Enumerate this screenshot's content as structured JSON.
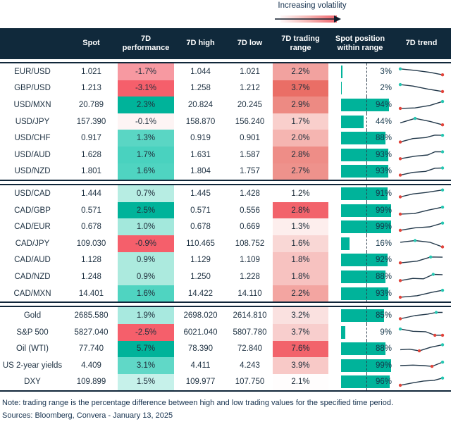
{
  "legend": {
    "label": "Increasing volatility"
  },
  "chart_data": {
    "type": "table",
    "columns": [
      "",
      "Spot",
      "7D performance",
      "7D high",
      "7D low",
      "7D trading range",
      "Spot position within range",
      "7D trend"
    ],
    "blocks": [
      {
        "rows": [
          {
            "label": "EUR/USD",
            "spot": "1.021",
            "perf": "-1.7%",
            "perf_bg": "#f799a1",
            "high": "1.044",
            "low": "1.021",
            "range": "2.2%",
            "range_bg": "#f2a29f",
            "pos": 3,
            "pos_label": "3%",
            "spark": {
              "pts": [
                [
                  0,
                  0.2
                ],
                [
                  0.35,
                  0.35
                ],
                [
                  0.7,
                  0.55
                ],
                [
                  1,
                  0.8
                ]
              ],
              "dots": [
                {
                  "i": 0,
                  "c": "teal"
                },
                {
                  "i": 3,
                  "c": "red"
                }
              ]
            }
          },
          {
            "label": "GBP/USD",
            "spot": "1.213",
            "perf": "-3.1%",
            "perf_bg": "#f55f6b",
            "high": "1.258",
            "low": "1.212",
            "range": "3.7%",
            "range_bg": "#ea6e66",
            "pos": 2,
            "pos_label": "2%",
            "spark": {
              "pts": [
                [
                  0,
                  0.15
                ],
                [
                  0.3,
                  0.3
                ],
                [
                  0.65,
                  0.6
                ],
                [
                  1,
                  0.85
                ]
              ],
              "dots": [
                {
                  "i": 0,
                  "c": "teal"
                },
                {
                  "i": 3,
                  "c": "red"
                }
              ]
            }
          },
          {
            "label": "USD/MXN",
            "spot": "20.789",
            "perf": "2.3%",
            "perf_bg": "#00b39a",
            "high": "20.824",
            "low": "20.245",
            "range": "2.9%",
            "range_bg": "#ed8a83",
            "pos": 94,
            "pos_label": "94%",
            "spark": {
              "pts": [
                [
                  0,
                  0.85
                ],
                [
                  0.35,
                  0.8
                ],
                [
                  0.7,
                  0.55
                ],
                [
                  1,
                  0.15
                ]
              ],
              "dots": [
                {
                  "i": 0,
                  "c": "red"
                },
                {
                  "i": 3,
                  "c": "teal"
                }
              ]
            }
          },
          {
            "label": "USD/JPY",
            "spot": "157.390",
            "perf": "-0.1%",
            "perf_bg": "#fdf4f4",
            "high": "158.870",
            "low": "156.240",
            "range": "1.7%",
            "range_bg": "#f9cfcc",
            "pos": 44,
            "pos_label": "44%",
            "spark": {
              "pts": [
                [
                  0,
                  0.6
                ],
                [
                  0.35,
                  0.15
                ],
                [
                  0.7,
                  0.45
                ],
                [
                  1,
                  0.8
                ]
              ],
              "dots": [
                {
                  "i": 1,
                  "c": "teal"
                },
                {
                  "i": 3,
                  "c": "red"
                }
              ]
            }
          },
          {
            "label": "USD/CHF",
            "spot": "0.917",
            "perf": "1.3%",
            "perf_bg": "#5ad6c4",
            "high": "0.919",
            "low": "0.901",
            "range": "2.0%",
            "range_bg": "#f5b5b1",
            "pos": 88,
            "pos_label": "88%",
            "spark": {
              "pts": [
                [
                  0,
                  0.9
                ],
                [
                  0.3,
                  0.55
                ],
                [
                  0.6,
                  0.45
                ],
                [
                  0.82,
                  0.2
                ],
                [
                  1,
                  0.22
                ]
              ],
              "dots": [
                {
                  "i": 0,
                  "c": "red"
                },
                {
                  "i": 4,
                  "c": "teal"
                }
              ]
            }
          },
          {
            "label": "USD/AUD",
            "spot": "1.628",
            "perf": "1.7%",
            "perf_bg": "#49d2bf",
            "high": "1.631",
            "low": "1.587",
            "range": "2.8%",
            "range_bg": "#ee8d87",
            "pos": 93,
            "pos_label": "93%",
            "spark": {
              "pts": [
                [
                  0,
                  0.88
                ],
                [
                  0.35,
                  0.62
                ],
                [
                  0.65,
                  0.5
                ],
                [
                  0.82,
                  0.18
                ],
                [
                  1,
                  0.18
                ]
              ],
              "dots": [
                {
                  "i": 0,
                  "c": "red"
                },
                {
                  "i": 4,
                  "c": "teal"
                }
              ]
            }
          },
          {
            "label": "USD/NZD",
            "spot": "1.801",
            "perf": "1.6%",
            "perf_bg": "#4fd4c1",
            "high": "1.804",
            "low": "1.757",
            "range": "2.7%",
            "range_bg": "#ee928c",
            "pos": 93,
            "pos_label": "93%",
            "spark": {
              "pts": [
                [
                  0,
                  0.9
                ],
                [
                  0.3,
                  0.62
                ],
                [
                  0.6,
                  0.52
                ],
                [
                  0.82,
                  0.2
                ],
                [
                  1,
                  0.18
                ]
              ],
              "dots": [
                {
                  "i": 0,
                  "c": "red"
                },
                {
                  "i": 4,
                  "c": "teal"
                }
              ]
            }
          }
        ]
      },
      {
        "rows": [
          {
            "label": "USD/CAD",
            "spot": "1.444",
            "perf": "0.7%",
            "perf_bg": "#b7ede3",
            "high": "1.445",
            "low": "1.428",
            "range": "1.2%",
            "range_bg": "#ffffff",
            "pos": 91,
            "pos_label": "91%",
            "spark": {
              "pts": [
                [
                  0,
                  0.82
                ],
                [
                  0.3,
                  0.52
                ],
                [
                  0.6,
                  0.38
                ],
                [
                  1,
                  0.12
                ]
              ],
              "dots": [
                {
                  "i": 0,
                  "c": "red"
                },
                {
                  "i": 3,
                  "c": "teal"
                }
              ]
            }
          },
          {
            "label": "CAD/GBP",
            "spot": "0.571",
            "perf": "2.5%",
            "perf_bg": "#00b39a",
            "high": "0.571",
            "low": "0.556",
            "range": "2.8%",
            "range_bg": "#f2636b",
            "pos": 99,
            "pos_label": "99%",
            "spark": {
              "pts": [
                [
                  0,
                  0.85
                ],
                [
                  0.33,
                  0.8
                ],
                [
                  0.66,
                  0.45
                ],
                [
                  1,
                  0.15
                ]
              ],
              "dots": [
                {
                  "i": 0,
                  "c": "red"
                },
                {
                  "i": 3,
                  "c": "teal"
                }
              ]
            }
          },
          {
            "label": "CAD/EUR",
            "spot": "0.678",
            "perf": "1.0%",
            "perf_bg": "#a3e8dc",
            "high": "0.678",
            "low": "0.669",
            "range": "1.3%",
            "range_bg": "#fdeeed",
            "pos": 99,
            "pos_label": "99%",
            "spark": {
              "pts": [
                [
                  0,
                  0.85
                ],
                [
                  0.35,
                  0.6
                ],
                [
                  0.7,
                  0.5
                ],
                [
                  1,
                  0.12
                ]
              ],
              "dots": [
                {
                  "i": 0,
                  "c": "red"
                },
                {
                  "i": 3,
                  "c": "teal"
                }
              ]
            }
          },
          {
            "label": "CAD/JPY",
            "spot": "109.030",
            "perf": "-0.9%",
            "perf_bg": "#f55f6b",
            "high": "110.465",
            "low": "108.752",
            "range": "1.6%",
            "range_bg": "#f9d7d5",
            "pos": 16,
            "pos_label": "16%",
            "spark": {
              "pts": [
                [
                  0,
                  0.35
                ],
                [
                  0.35,
                  0.18
                ],
                [
                  0.7,
                  0.35
                ],
                [
                  1,
                  0.82
                ]
              ],
              "dots": [
                {
                  "i": 1,
                  "c": "teal"
                },
                {
                  "i": 3,
                  "c": "red"
                }
              ]
            }
          },
          {
            "label": "CAD/AUD",
            "spot": "1.128",
            "perf": "0.9%",
            "perf_bg": "#aceade",
            "high": "1.129",
            "low": "1.109",
            "range": "1.8%",
            "range_bg": "#f7c2c0",
            "pos": 92,
            "pos_label": "92%",
            "spark": {
              "pts": [
                [
                  0,
                  0.8
                ],
                [
                  0.4,
                  0.62
                ],
                [
                  0.72,
                  0.2
                ],
                [
                  1,
                  0.22
                ]
              ],
              "dots": [
                {
                  "i": 0,
                  "c": "red"
                },
                {
                  "i": 2,
                  "c": "teal"
                }
              ]
            }
          },
          {
            "label": "CAD/NZD",
            "spot": "1.248",
            "perf": "0.9%",
            "perf_bg": "#aceade",
            "high": "1.250",
            "low": "1.228",
            "range": "1.8%",
            "range_bg": "#f7c2c0",
            "pos": 88,
            "pos_label": "88%",
            "spark": {
              "pts": [
                [
                  0,
                  0.88
                ],
                [
                  0.3,
                  0.66
                ],
                [
                  0.55,
                  0.7
                ],
                [
                  0.78,
                  0.25
                ],
                [
                  1,
                  0.28
                ]
              ],
              "dots": [
                {
                  "i": 0,
                  "c": "red"
                },
                {
                  "i": 3,
                  "c": "teal"
                }
              ]
            }
          },
          {
            "label": "CAD/MXN",
            "spot": "14.401",
            "perf": "1.6%",
            "perf_bg": "#4fd4c1",
            "high": "14.422",
            "low": "14.110",
            "range": "2.2%",
            "range_bg": "#f3a5a1",
            "pos": 93,
            "pos_label": "93%",
            "spark": {
              "pts": [
                [
                  0,
                  0.85
                ],
                [
                  0.4,
                  0.7
                ],
                [
                  0.75,
                  0.35
                ],
                [
                  1,
                  0.15
                ]
              ],
              "dots": [
                {
                  "i": 0,
                  "c": "red"
                },
                {
                  "i": 3,
                  "c": "teal"
                }
              ]
            }
          }
        ]
      },
      {
        "rows": [
          {
            "label": "Gold",
            "spot": "2685.580",
            "perf": "1.9%",
            "perf_bg": "#a8e9df",
            "high": "2698.020",
            "low": "2614.810",
            "range": "3.2%",
            "range_bg": "#fae1e0",
            "pos": 85,
            "pos_label": "85%",
            "spark": {
              "pts": [
                [
                  0,
                  0.82
                ],
                [
                  0.35,
                  0.5
                ],
                [
                  0.65,
                  0.35
                ],
                [
                  0.85,
                  0.18
                ],
                [
                  1,
                  0.18
                ]
              ],
              "dots": [
                {
                  "i": 0,
                  "c": "red"
                },
                {
                  "i": 3,
                  "c": "teal"
                }
              ]
            }
          },
          {
            "label": "S&P 500",
            "spot": "5827.040",
            "perf": "-2.5%",
            "perf_bg": "#f55f6b",
            "high": "6021.040",
            "low": "5807.780",
            "range": "3.7%",
            "range_bg": "#f8cecd",
            "pos": 9,
            "pos_label": "9%",
            "spark": {
              "pts": [
                [
                  0,
                  0.15
                ],
                [
                  0.3,
                  0.38
                ],
                [
                  0.6,
                  0.42
                ],
                [
                  0.82,
                  0.78
                ],
                [
                  1,
                  0.78
                ]
              ],
              "dots": [
                {
                  "i": 0,
                  "c": "teal"
                },
                {
                  "i": 3,
                  "c": "red"
                },
                {
                  "i": 4,
                  "c": "red"
                }
              ]
            }
          },
          {
            "label": "Oil (WTI)",
            "spot": "77.740",
            "perf": "5.7%",
            "perf_bg": "#00b39a",
            "high": "78.390",
            "low": "72.840",
            "range": "7.6%",
            "range_bg": "#f2636b",
            "pos": 88,
            "pos_label": "88%",
            "spark": {
              "pts": [
                [
                  0,
                  0.6
                ],
                [
                  0.22,
                  0.55
                ],
                [
                  0.45,
                  0.72
                ],
                [
                  0.72,
                  0.35
                ],
                [
                  1,
                  0.1
                ]
              ],
              "dots": [
                {
                  "i": 2,
                  "c": "red"
                },
                {
                  "i": 4,
                  "c": "teal"
                }
              ]
            }
          },
          {
            "label": "US 2-year yields",
            "spot": "4.409",
            "perf": "3.1%",
            "perf_bg": "#60d8c7",
            "high": "4.411",
            "low": "4.243",
            "range": "3.9%",
            "range_bg": "#f8c9c7",
            "pos": 99,
            "pos_label": "99%",
            "spark": {
              "pts": [
                [
                  0,
                  0.5
                ],
                [
                  0.3,
                  0.45
                ],
                [
                  0.55,
                  0.5
                ],
                [
                  0.75,
                  0.58
                ],
                [
                  1,
                  0.15
                ]
              ],
              "dots": [
                {
                  "i": 3,
                  "c": "red"
                },
                {
                  "i": 4,
                  "c": "teal"
                }
              ]
            }
          },
          {
            "label": "DXY",
            "spot": "109.899",
            "perf": "1.5%",
            "perf_bg": "#c6f1ea",
            "high": "109.977",
            "low": "107.750",
            "range": "2.1%",
            "range_bg": "#fffdfd",
            "pos": 96,
            "pos_label": "96%",
            "spark": {
              "pts": [
                [
                  0,
                  0.85
                ],
                [
                  0.3,
                  0.6
                ],
                [
                  0.55,
                  0.42
                ],
                [
                  0.8,
                  0.35
                ],
                [
                  1,
                  0.12
                ]
              ],
              "dots": [
                {
                  "i": 0,
                  "c": "red"
                },
                {
                  "i": 4,
                  "c": "teal"
                }
              ]
            }
          }
        ]
      }
    ]
  },
  "footer": {
    "note": "Note: trading range is the percentage difference between high and low trading values for the specified time period.",
    "sources": "Sources: Bloomberg, Convera - January 13, 2025"
  },
  "colors": {
    "header_bg": "#10293b",
    "text": "#1e3142",
    "bar_teal": "#00b39a",
    "dot_red": "#e2443b",
    "dot_teal": "#27c7b2",
    "spark_line": "#22384a",
    "separator": "#11273a",
    "gradient_end": "#f0636c"
  }
}
